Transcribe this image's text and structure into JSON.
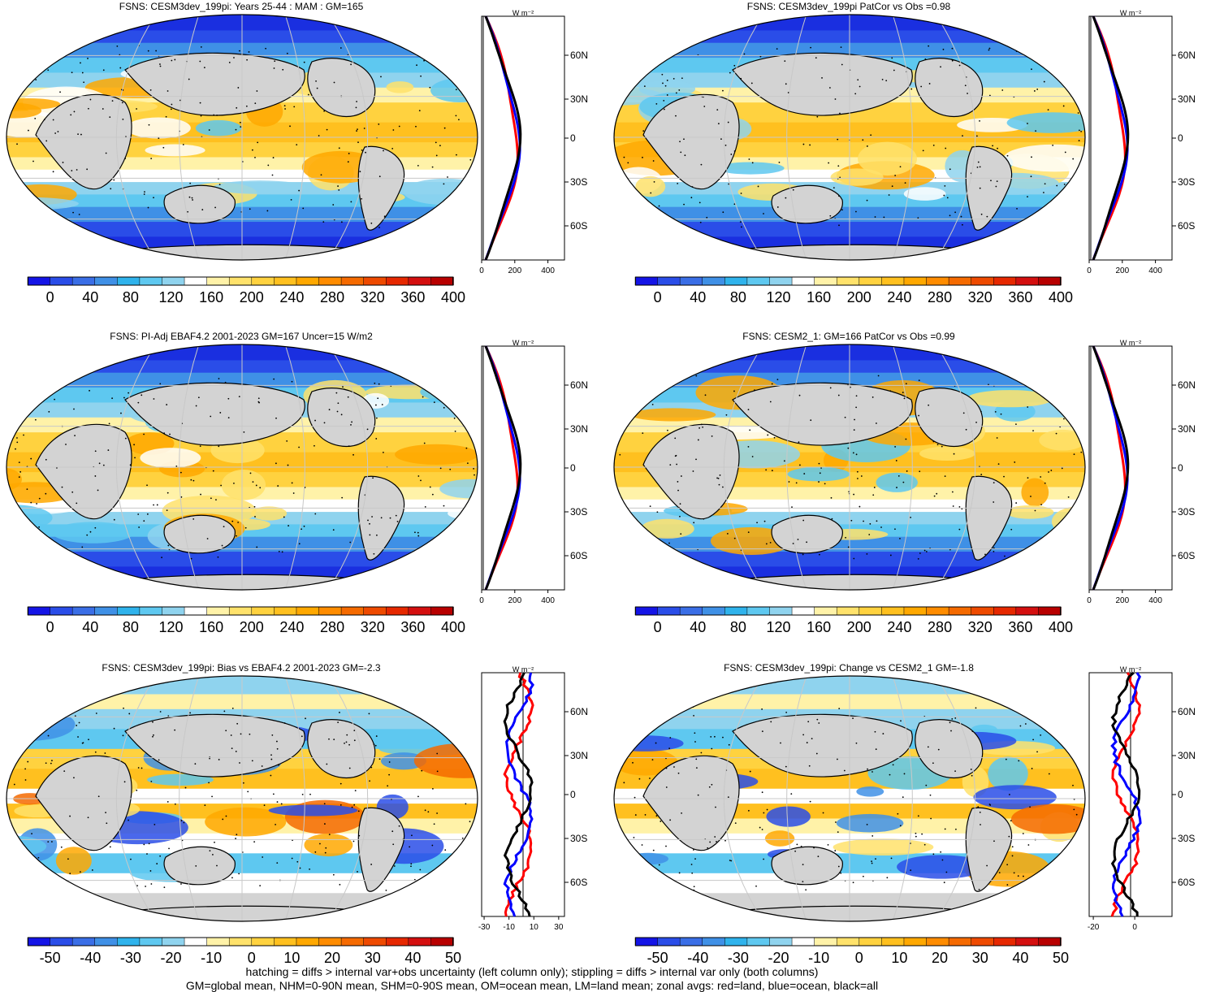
{
  "colors": {
    "land": "#d3d3d3",
    "zonal_land": "#ff0000",
    "zonal_ocean": "#0000ff",
    "zonal_all": "#000000"
  },
  "abs_cbar": {
    "labels": [
      "0",
      "40",
      "80",
      "120",
      "160",
      "200",
      "240",
      "280",
      "320",
      "360",
      "400"
    ],
    "colors": [
      "#1414e6",
      "#2a4de8",
      "#3a6ee6",
      "#3f90e6",
      "#2fb3ec",
      "#5ec8f0",
      "#8fd3ee",
      "#ffffff",
      "#fff2a8",
      "#ffe26b",
      "#ffd23f",
      "#ffc01f",
      "#ffa800",
      "#ff8c00",
      "#f56a00",
      "#ee4a00",
      "#e62800",
      "#d40f0f",
      "#b80000"
    ]
  },
  "diff_cbar": {
    "labels": [
      "-50",
      "-40",
      "-30",
      "-20",
      "-10",
      "0",
      "10",
      "20",
      "30",
      "40",
      "50"
    ],
    "colors": [
      "#1414e6",
      "#2a4de8",
      "#3a6ee6",
      "#3f90e6",
      "#2fb3ec",
      "#5ec8f0",
      "#8fd3ee",
      "#ffffff",
      "#fff2a8",
      "#ffe26b",
      "#ffd23f",
      "#ffc01f",
      "#ffa800",
      "#ff8c00",
      "#f56a00",
      "#ee4a00",
      "#e62800",
      "#d40f0f",
      "#b80000"
    ]
  },
  "profile_lat_labels": [
    "60N",
    "30N",
    "0",
    "30S",
    "60S"
  ],
  "profile_unit": "W m⁻²",
  "panels": [
    {
      "title": "FSNS: CESM3dev_199pi: Years 25-44 : MAM : GM=165",
      "x_ticks": [
        "0",
        "200",
        "400"
      ],
      "kind": "abs"
    },
    {
      "title": "FSNS: CESM3dev_199pi PatCor vs Obs =0.98",
      "x_ticks": [
        "0",
        "200",
        "400"
      ],
      "kind": "abs"
    },
    {
      "title": "FSNS: PI-Adj EBAF4.2 2001-2023 GM=167 Uncer=15 W/m2",
      "x_ticks": [
        "0",
        "200",
        "400"
      ],
      "kind": "abs"
    },
    {
      "title": "FSNS: CESM2_1: GM=166 PatCor vs Obs =0.99",
      "x_ticks": [
        "0",
        "200",
        "400"
      ],
      "kind": "abs"
    },
    {
      "title": "FSNS: CESM3dev_199pi: Bias vs EBAF4.2 2001-2023 GM=-2.3",
      "x_ticks": [
        "-30",
        "-10",
        "10",
        "30"
      ],
      "kind": "diff"
    },
    {
      "title": "FSNS: CESM3dev_199pi: Change vs CESM2_1 GM=-1.8",
      "x_ticks": [
        "-20",
        "0"
      ],
      "kind": "diff"
    }
  ],
  "footer": {
    "line1": "hatching = diffs > internal var+obs uncertainty (left column only); stippling = diffs > internal var only (both columns)",
    "line2": "GM=global mean, NHM=0-90N mean, SHM=0-90S mean, OM=ocean mean, LM=land mean; zonal avgs: red=land, blue=ocean, black=all"
  }
}
